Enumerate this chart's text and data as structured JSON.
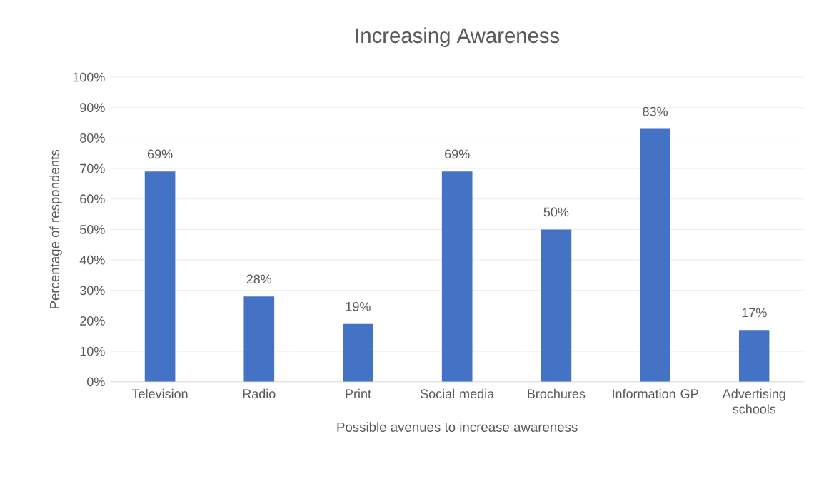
{
  "chart_data": {
    "type": "bar",
    "title": "Increasing Awareness",
    "xlabel": "Possible avenues to increase awareness",
    "ylabel": "Percentage of respondents",
    "categories": [
      "Television",
      "Radio",
      "Print",
      "Social media",
      "Brochures",
      "Information GP",
      "Advertising schools"
    ],
    "values": [
      69,
      28,
      19,
      69,
      50,
      83,
      17
    ],
    "value_labels": [
      "69%",
      "28%",
      "19%",
      "69%",
      "50%",
      "83%",
      "17%"
    ],
    "color": "#4472c4",
    "ylim": [
      0,
      100
    ],
    "yticks": [
      {
        "value": 0,
        "label": "0%"
      },
      {
        "value": 10,
        "label": "10%"
      },
      {
        "value": 20,
        "label": "20%"
      },
      {
        "value": 30,
        "label": "30%"
      },
      {
        "value": 40,
        "label": "40%"
      },
      {
        "value": 50,
        "label": "50%"
      },
      {
        "value": 60,
        "label": "60%"
      },
      {
        "value": 70,
        "label": "70%"
      },
      {
        "value": 80,
        "label": "80%"
      },
      {
        "value": 90,
        "label": "90%"
      },
      {
        "value": 100,
        "label": "100%"
      }
    ],
    "grid": "y"
  }
}
